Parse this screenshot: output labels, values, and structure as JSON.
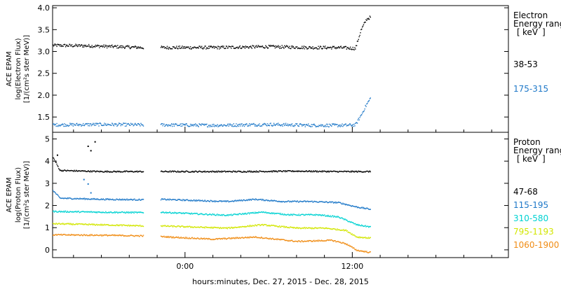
{
  "chart_data": [
    {
      "type": "scatter",
      "panel": "electron",
      "ylabel_lines": [
        "ACE EPAM",
        "log(Electron Flux)",
        "[1/(cm²s ster MeV)]"
      ],
      "legend_title_lines": [
        "Electron",
        "Energy range",
        "[keV]"
      ],
      "yticks": [
        "1.5",
        "2.0",
        "2.5",
        "3.0",
        "3.5",
        "4.0"
      ],
      "ylim": [
        1.15,
        4.05
      ],
      "xlim": [
        -9.5,
        23.2
      ],
      "gaps": [
        [
          -3.0,
          -1.8
        ]
      ],
      "data_end": 13.3,
      "series": [
        {
          "name": "38-53",
          "color": "#000000",
          "points": [
            [
              -9.5,
              3.15
            ],
            [
              -7.0,
              3.14
            ],
            [
              -5.0,
              3.12
            ],
            [
              -3.0,
              3.1
            ],
            [
              -1.8,
              3.1
            ],
            [
              2.0,
              3.1
            ],
            [
              6.0,
              3.12
            ],
            [
              9.0,
              3.1
            ],
            [
              11.0,
              3.1
            ],
            [
              12.2,
              3.08
            ],
            [
              12.6,
              3.5
            ],
            [
              13.0,
              3.75
            ],
            [
              13.3,
              3.8
            ]
          ]
        },
        {
          "name": "175-315",
          "color": "#1e78c8",
          "points": [
            [
              -9.5,
              1.33
            ],
            [
              -6.0,
              1.34
            ],
            [
              -3.0,
              1.33
            ],
            [
              -1.8,
              1.33
            ],
            [
              2.0,
              1.32
            ],
            [
              6.0,
              1.34
            ],
            [
              9.0,
              1.32
            ],
            [
              11.5,
              1.32
            ],
            [
              12.2,
              1.33
            ],
            [
              12.6,
              1.55
            ],
            [
              13.0,
              1.8
            ],
            [
              13.3,
              1.95
            ]
          ]
        }
      ]
    },
    {
      "type": "scatter",
      "panel": "proton",
      "ylabel_lines": [
        "ACE EPAM",
        "log(Proton Flux)",
        "[1/(cm²s ster MeV)]"
      ],
      "legend_title_lines": [
        "Proton",
        "Energy range",
        "[keV]"
      ],
      "yticks": [
        "0",
        "1",
        "2",
        "3",
        "4",
        "5"
      ],
      "ylim": [
        -0.35,
        5.3
      ],
      "xlim": [
        -9.5,
        23.2
      ],
      "gaps": [
        [
          -3.0,
          -1.8
        ]
      ],
      "data_end": 13.3,
      "series": [
        {
          "name": "47-68",
          "color": "#000000",
          "points": [
            [
              -9.5,
              4.2
            ],
            [
              -9.0,
              3.6
            ],
            [
              -6.0,
              3.55
            ],
            [
              -3.0,
              3.55
            ],
            [
              -1.8,
              3.55
            ],
            [
              4.0,
              3.55
            ],
            [
              8.0,
              3.57
            ],
            [
              11.0,
              3.55
            ],
            [
              13.3,
              3.55
            ]
          ],
          "spikes": [
            [
              -9.2,
              4.3
            ],
            [
              -7.0,
              4.7
            ],
            [
              -6.5,
              4.9
            ],
            [
              -6.8,
              4.5
            ]
          ]
        },
        {
          "name": "115-195",
          "color": "#1e78c8",
          "points": [
            [
              -9.5,
              2.7
            ],
            [
              -9.0,
              2.35
            ],
            [
              -6.0,
              2.3
            ],
            [
              -3.0,
              2.28
            ],
            [
              -1.8,
              2.3
            ],
            [
              3.0,
              2.2
            ],
            [
              5.0,
              2.3
            ],
            [
              7.0,
              2.2
            ],
            [
              9.0,
              2.2
            ],
            [
              11.0,
              2.15
            ],
            [
              12.3,
              1.95
            ],
            [
              13.3,
              1.85
            ]
          ],
          "spikes": [
            [
              -7.3,
              3.2
            ],
            [
              -7.0,
              3.0
            ],
            [
              -6.8,
              2.6
            ]
          ]
        },
        {
          "name": "310-580",
          "color": "#00d2d2",
          "points": [
            [
              -9.5,
              1.75
            ],
            [
              -6.0,
              1.72
            ],
            [
              -3.0,
              1.7
            ],
            [
              -1.8,
              1.72
            ],
            [
              3.0,
              1.58
            ],
            [
              5.5,
              1.72
            ],
            [
              7.5,
              1.6
            ],
            [
              9.5,
              1.6
            ],
            [
              11.0,
              1.5
            ],
            [
              12.3,
              1.15
            ],
            [
              13.3,
              1.05
            ]
          ]
        },
        {
          "name": "795-1193",
          "color": "#d2e600",
          "points": [
            [
              -9.5,
              1.2
            ],
            [
              -6.0,
              1.15
            ],
            [
              -3.0,
              1.1
            ],
            [
              -1.8,
              1.1
            ],
            [
              3.0,
              1.0
            ],
            [
              5.5,
              1.15
            ],
            [
              8.0,
              1.0
            ],
            [
              10.0,
              1.0
            ],
            [
              11.5,
              0.9
            ],
            [
              12.3,
              0.6
            ],
            [
              13.3,
              0.55
            ]
          ]
        },
        {
          "name": "1060-1900",
          "color": "#f08c14",
          "points": [
            [
              -9.5,
              0.7
            ],
            [
              -6.0,
              0.68
            ],
            [
              -3.0,
              0.65
            ],
            [
              -1.8,
              0.62
            ],
            [
              2.0,
              0.5
            ],
            [
              5.0,
              0.6
            ],
            [
              8.0,
              0.4
            ],
            [
              10.5,
              0.45
            ],
            [
              11.5,
              0.3
            ],
            [
              12.3,
              0.0
            ],
            [
              13.3,
              -0.1
            ]
          ]
        }
      ]
    }
  ],
  "x_axis": {
    "ticks": [
      {
        "value": 0,
        "label": "0:00"
      },
      {
        "value": 12,
        "label": "12:00"
      }
    ],
    "minor_ticks": [
      -8,
      -6,
      -4,
      -2,
      2,
      4,
      6,
      8,
      10,
      14,
      16,
      18,
      20,
      22
    ],
    "label": "hours:minutes, Dec. 27, 2015 - Dec. 28, 2015"
  }
}
